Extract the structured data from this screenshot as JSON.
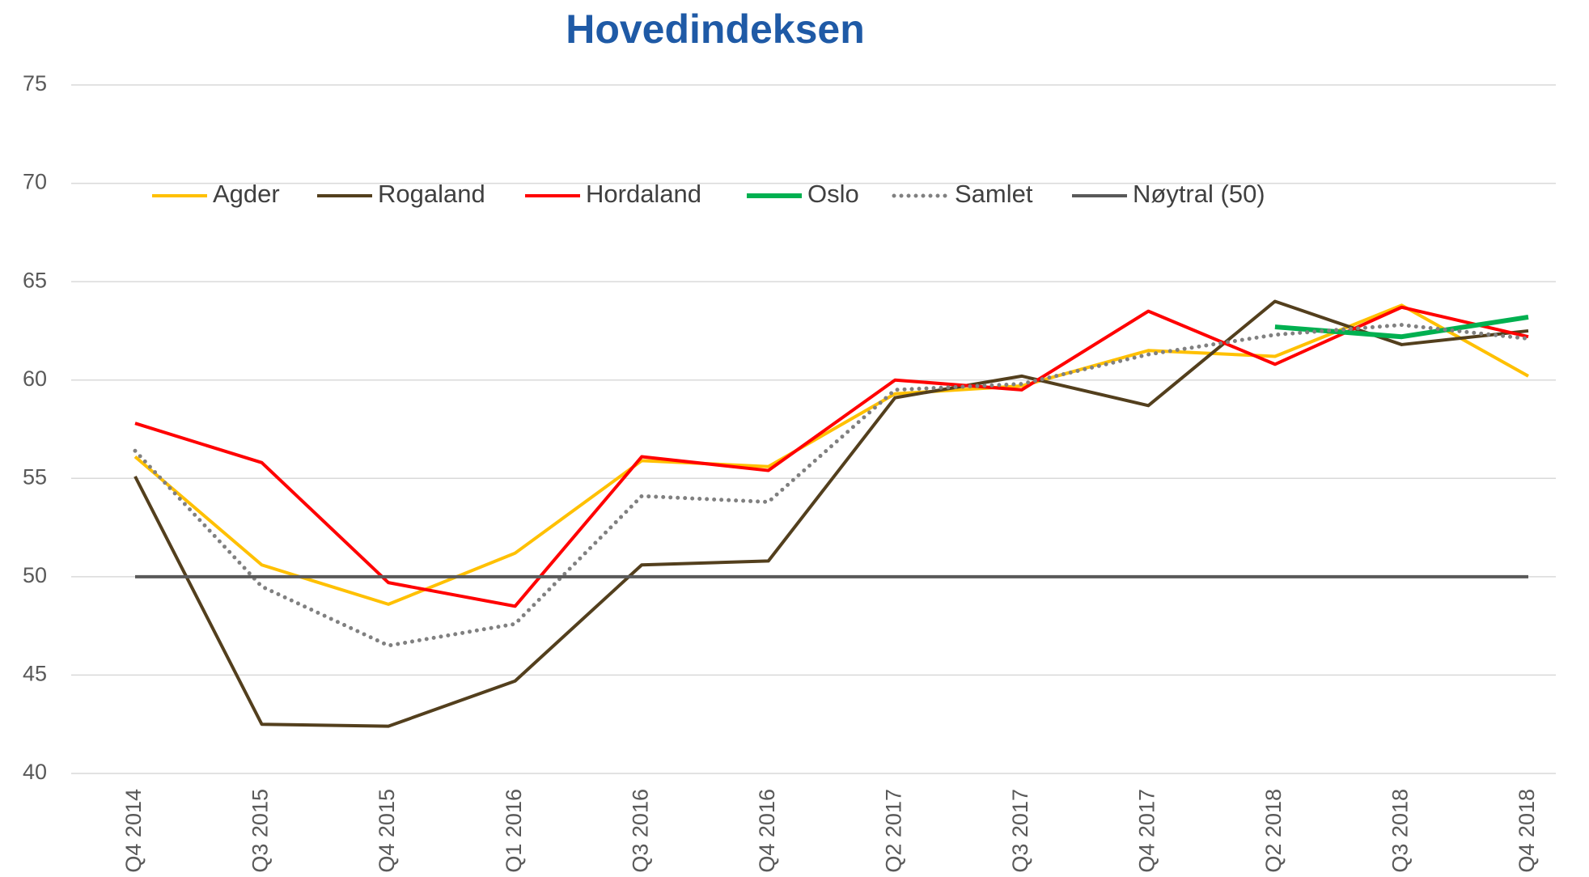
{
  "chart_data": {
    "type": "line",
    "title": "Hovedindeksen",
    "categories": [
      "Q4 2014",
      "Q3 2015",
      "Q4 2015",
      "Q1 2016",
      "Q3 2016",
      "Q4 2016",
      "Q2 2017",
      "Q3 2017",
      "Q4 2017",
      "Q2 2018",
      "Q3 2018",
      "Q4 2018"
    ],
    "series": [
      {
        "name": "Agder",
        "color": "#ffc000",
        "width": 4,
        "values": [
          56.1,
          50.6,
          48.6,
          51.2,
          55.9,
          55.6,
          59.3,
          59.7,
          61.5,
          61.2,
          63.8,
          60.2
        ]
      },
      {
        "name": "Rogaland",
        "color": "#533f1d",
        "width": 4,
        "values": [
          55.1,
          42.5,
          42.4,
          44.7,
          50.6,
          50.8,
          59.1,
          60.2,
          58.7,
          64.0,
          61.8,
          62.5
        ]
      },
      {
        "name": "Hordaland",
        "color": "#ff0000",
        "width": 4,
        "values": [
          57.8,
          55.8,
          49.7,
          48.5,
          56.1,
          55.4,
          60.0,
          59.5,
          63.5,
          60.8,
          63.7,
          62.2
        ]
      },
      {
        "name": "Oslo",
        "color": "#00b050",
        "width": 6,
        "values": [
          null,
          null,
          null,
          null,
          null,
          null,
          null,
          null,
          null,
          62.7,
          62.2,
          63.2
        ]
      },
      {
        "name": "Samlet",
        "color": "#808080",
        "width": 5,
        "dash": "dotted",
        "values": [
          56.4,
          49.5,
          46.5,
          47.6,
          54.1,
          53.8,
          59.5,
          59.8,
          61.3,
          62.3,
          62.8,
          62.1
        ]
      },
      {
        "name": "Nøytral (50)",
        "color": "#595959",
        "width": 4,
        "values": [
          50,
          50,
          50,
          50,
          50,
          50,
          50,
          50,
          50,
          50,
          50,
          50
        ]
      }
    ],
    "ylim": [
      40,
      75
    ],
    "yticks": [
      40,
      45,
      50,
      55,
      60,
      65,
      70,
      75
    ],
    "grid": true,
    "legend": "top"
  }
}
